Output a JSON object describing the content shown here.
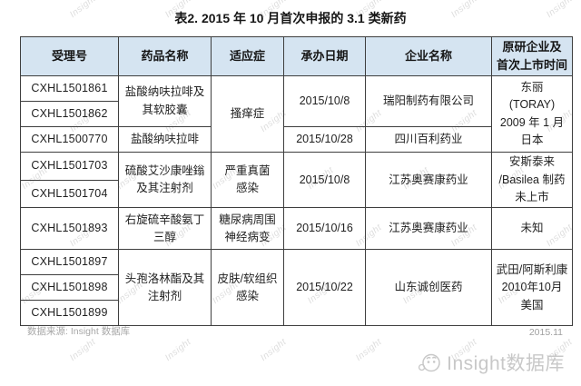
{
  "title": "表2. 2015 年 10 月首次申报的 3.1 类新药",
  "table": {
    "headers": [
      "受理号",
      "药品名称",
      "适应症",
      "承办日期",
      "企业名称",
      "原研企业及\n首次上市时间"
    ],
    "acceptance_numbers": [
      "CXHL1501861",
      "CXHL1501862",
      "CXHL1500770",
      "CXHL1501703",
      "CXHL1501704",
      "CXHL1501893",
      "CXHL1501897",
      "CXHL1501898",
      "CXHL1501899"
    ],
    "drug_names": [
      "盐酸纳呋拉啡及\n其软胶囊",
      "盐酸纳呋拉啡",
      "硫酸艾沙康唑鎓\n及其注射剂",
      "右旋硫辛酸氨丁\n三醇",
      "头孢洛林酯及其\n注射剂"
    ],
    "indications": [
      "搔痒症",
      "严重真菌\n感染",
      "糖尿病周围\n神经病变",
      "皮肤/软组织\n感染"
    ],
    "dates": [
      "2015/10/8",
      "2015/10/28",
      "2015/10/8",
      "2015/10/16",
      "2015/10/22"
    ],
    "companies": [
      "瑞阳制药有限公司",
      "四川百利药业",
      "江苏奥赛康药业",
      "江苏奥赛康药业",
      "山东诚创医药"
    ],
    "originators": [
      "东丽\n(TORAY)\n2009 年 1 月\n日本",
      "安斯泰来\n/Basilea 制药\n未上市",
      "未知",
      "武田/阿斯利康\n2010年10月\n美国"
    ]
  },
  "footer": {
    "source": "数据来源: Insight 数据库",
    "issue_date": "2015.11",
    "logo_text": "Insight数据库"
  },
  "watermark": {
    "text": "Insight"
  },
  "colors": {
    "header_bg": "#d5e4f1",
    "border_dark": "#3e3e3e",
    "border_light": "#b9b9b9",
    "footer_gray": "#a8a8a8",
    "logo_gray": "#c8c8c8"
  }
}
